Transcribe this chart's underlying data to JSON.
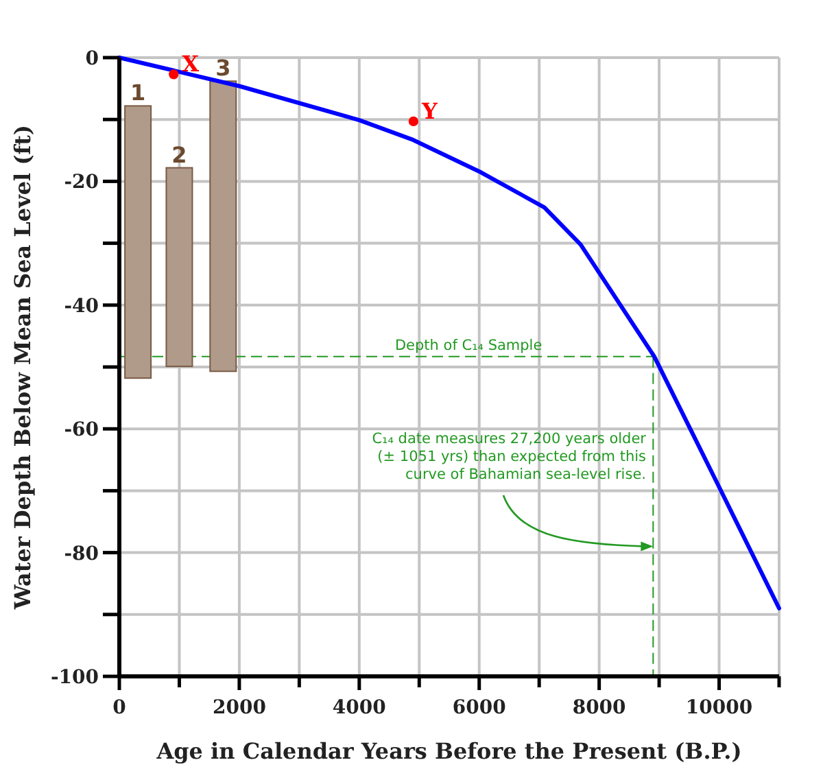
{
  "chart_data": {
    "type": "line",
    "xlabel": "Age in Calendar Years Before the Present (B.P.)",
    "ylabel": "Water Depth Below Mean Sea Level (ft)",
    "xlim": [
      0,
      11000
    ],
    "ylim": [
      -100,
      0
    ],
    "xticks": [
      0,
      {
        "value": 1000,
        "label": null
      },
      2000,
      {
        "value": 3000,
        "label": null
      },
      4000,
      {
        "value": 5000,
        "label": null
      },
      6000,
      {
        "value": 7000,
        "label": null
      },
      8000,
      {
        "value": 9000,
        "label": null
      },
      10000,
      {
        "value": 11000,
        "label": null
      }
    ],
    "yticks": [
      -100,
      {
        "value": -90,
        "label": null
      },
      -80,
      {
        "value": -70,
        "label": null
      },
      -60,
      {
        "value": -50,
        "label": null
      },
      -40,
      {
        "value": -30,
        "label": null
      },
      -20,
      {
        "value": -10,
        "label": null
      },
      0
    ],
    "grid": true,
    "line_style": "solid",
    "series": [
      {
        "color": "#0000ff",
        "x": [
          0,
          2000,
          4000,
          4874,
          6000,
          7086,
          7690,
          8918,
          10000,
          11000
        ],
        "values": [
          0,
          -4.6,
          -10.1,
          -13.2,
          -18.4,
          -24.2,
          -30.2,
          -48.3,
          -69.4,
          -89
        ]
      },
      {
        "type": "bar",
        "color": "#b09a8a",
        "x": [
          310,
          1000,
          1730
        ],
        "base": [
          -51.8,
          -49.9,
          -50.7
        ],
        "values": [
          44,
          32.1,
          46.9
        ]
      },
      {
        "type": "scatter",
        "color": "#ff0000",
        "marker": "circle",
        "x": [
          906,
          4904
        ],
        "values": [
          -2.7,
          -10.3
        ],
        "value_labels": [
          "X",
          "Y"
        ]
      }
    ],
    "ref_lines": [
      {
        "axis": "y",
        "value": -48.3,
        "label": "Depth of C₁₄ Sample",
        "color": "#229922",
        "line_style": "dashed"
      },
      {
        "axis": "x",
        "value": 8900,
        "label": null,
        "color": "#229922",
        "line_style": "dashed"
      }
    ],
    "annotations": [
      {
        "text": "C₁₄ date measures 27,200 years older\n(± 1051 yrs) than expected from this\ncurve of Bahamian sea-level rise.",
        "x": 8900,
        "y": -79
      },
      {
        "text": "1",
        "x": 310,
        "y": -7.8
      },
      {
        "text": "2",
        "x": 1000,
        "y": -17.8
      },
      {
        "text": "3",
        "x": 1730,
        "y": -3.8
      }
    ]
  }
}
